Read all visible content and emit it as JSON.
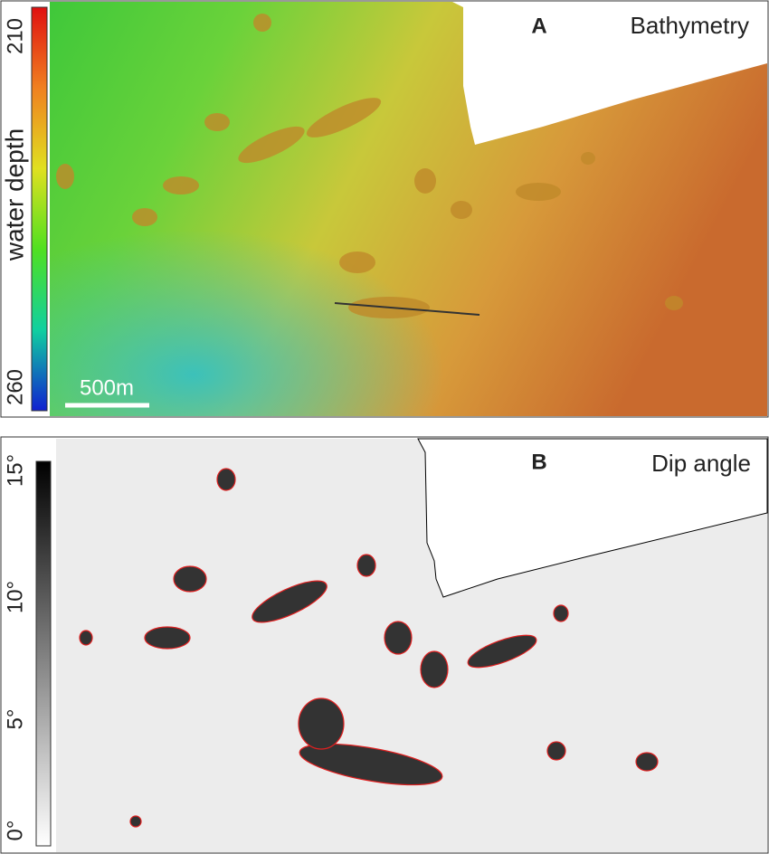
{
  "panels": [
    {
      "label": "A",
      "title": "Bathymetry",
      "colorbar": {
        "label": "water depth",
        "ticks": [
          "210",
          "260"
        ]
      },
      "scale_bar": "500m"
    },
    {
      "label": "B",
      "title": "Dip angle",
      "colorbar": {
        "ticks": [
          "15°",
          "10°",
          "5°",
          "0°"
        ]
      }
    }
  ]
}
